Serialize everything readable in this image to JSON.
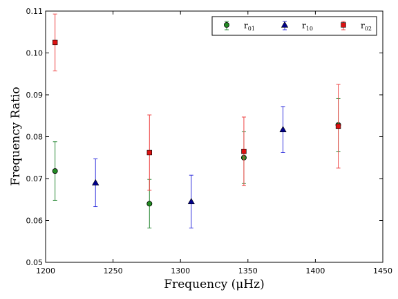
{
  "chart_data": {
    "type": "scatter",
    "xlabel": "Frequency  (μHz)",
    "ylabel": "Frequency Ratio",
    "xlim": [
      1200,
      1450
    ],
    "ylim": [
      0.05,
      0.11
    ],
    "x_ticks": [
      "1200",
      "1250",
      "1300",
      "1350",
      "1400",
      "1450"
    ],
    "y_ticks": [
      "0.05",
      "0.06",
      "0.07",
      "0.08",
      "0.09",
      "0.10",
      "0.11"
    ],
    "grid": false,
    "legend_position": "top-right",
    "series": [
      {
        "name": "r01",
        "label_main": "r",
        "label_sub": "01",
        "marker": "circle",
        "color": "#228b22",
        "errorbar_color": "#2e8b3a",
        "points": [
          {
            "x": 1207,
            "y": 0.0718,
            "err": 0.007
          },
          {
            "x": 1277,
            "y": 0.064,
            "err": 0.0058
          },
          {
            "x": 1347,
            "y": 0.075,
            "err": 0.0062
          },
          {
            "x": 1417,
            "y": 0.0828,
            "err": 0.0063
          }
        ]
      },
      {
        "name": "r10",
        "label_main": "r",
        "label_sub": "10",
        "marker": "triangle",
        "color": "#00008b",
        "errorbar_color": "#3333dd",
        "points": [
          {
            "x": 1237,
            "y": 0.069,
            "err": 0.0057
          },
          {
            "x": 1308,
            "y": 0.0645,
            "err": 0.0063
          },
          {
            "x": 1376,
            "y": 0.0817,
            "err": 0.0055
          }
        ]
      },
      {
        "name": "r02",
        "label_main": "r",
        "label_sub": "02",
        "marker": "square",
        "color": "#dd1111",
        "errorbar_color": "#ee4444",
        "points": [
          {
            "x": 1207,
            "y": 0.1025,
            "err": 0.0068
          },
          {
            "x": 1277,
            "y": 0.0762,
            "err": 0.009
          },
          {
            "x": 1347,
            "y": 0.0765,
            "err": 0.0082
          },
          {
            "x": 1417,
            "y": 0.0825,
            "err": 0.01
          }
        ]
      }
    ]
  }
}
